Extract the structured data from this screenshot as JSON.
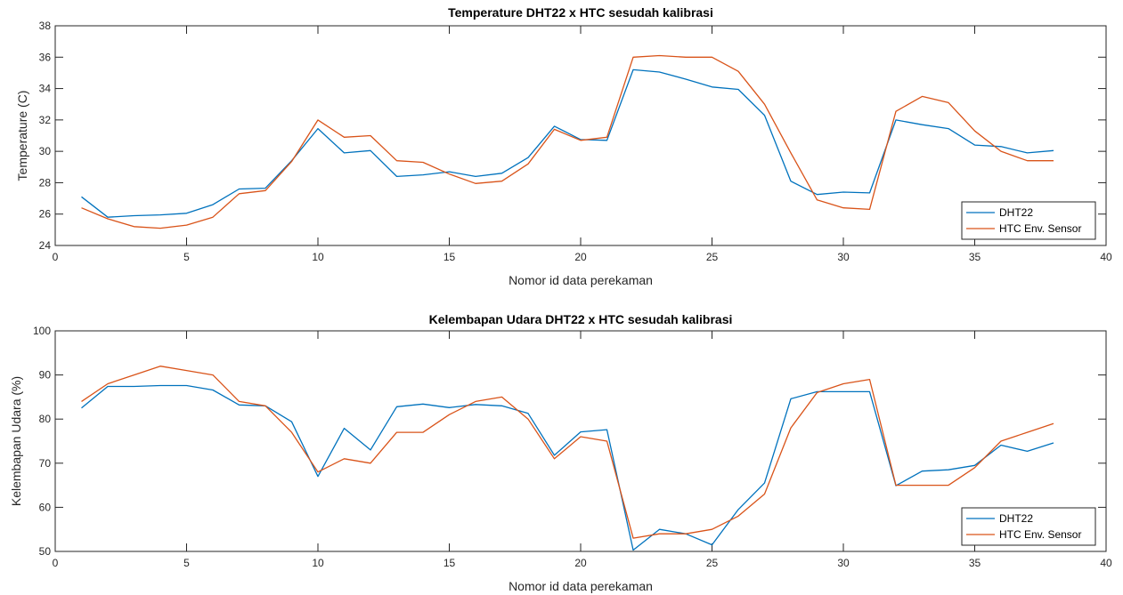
{
  "chart_data": [
    {
      "type": "line",
      "title": "Temperature DHT22 x HTC sesudah kalibrasi",
      "xlabel": "Nomor id data perekaman",
      "ylabel": "Temperature (C)",
      "xlim": [
        0,
        40
      ],
      "ylim": [
        24,
        38
      ],
      "xticks": [
        0,
        5,
        10,
        15,
        20,
        25,
        30,
        35,
        40
      ],
      "yticks": [
        24,
        26,
        28,
        30,
        32,
        34,
        36,
        38
      ],
      "grid": false,
      "legend_position": "bottom-right",
      "x": [
        1,
        2,
        3,
        4,
        5,
        6,
        7,
        8,
        9,
        10,
        11,
        12,
        13,
        14,
        15,
        16,
        17,
        18,
        19,
        20,
        21,
        22,
        23,
        24,
        25,
        26,
        27,
        28,
        29,
        30,
        31,
        32,
        33,
        34,
        35,
        36,
        37,
        38
      ],
      "series": [
        {
          "name": "DHT22",
          "color": "#0072BD",
          "values": [
            27.1,
            25.8,
            25.9,
            25.95,
            26.05,
            26.6,
            27.6,
            27.65,
            29.4,
            31.45,
            29.9,
            30.05,
            28.4,
            28.5,
            28.7,
            28.4,
            28.6,
            29.6,
            31.6,
            30.75,
            30.7,
            35.2,
            35.05,
            34.6,
            34.1,
            33.95,
            32.3,
            28.1,
            27.25,
            27.4,
            27.35,
            32.0,
            31.7,
            31.45,
            30.4,
            30.3,
            29.9,
            30.05
          ]
        },
        {
          "name": "HTC Env. Sensor",
          "color": "#D95319",
          "values": [
            26.4,
            25.7,
            25.2,
            25.1,
            25.3,
            25.8,
            27.3,
            27.5,
            29.35,
            32.0,
            30.9,
            31.0,
            29.4,
            29.3,
            28.55,
            27.95,
            28.1,
            29.2,
            31.4,
            30.7,
            30.9,
            36.0,
            36.1,
            36.0,
            36.0,
            35.1,
            33.0,
            29.9,
            26.9,
            26.4,
            26.3,
            32.55,
            33.5,
            33.1,
            31.3,
            30.0,
            29.4,
            29.4
          ]
        }
      ]
    },
    {
      "type": "line",
      "title": "Kelembapan Udara DHT22 x HTC sesudah kalibrasi",
      "xlabel": "Nomor id data perekaman",
      "ylabel": "Kelembapan Udara (%)",
      "xlim": [
        0,
        40
      ],
      "ylim": [
        50,
        100
      ],
      "xticks": [
        0,
        5,
        10,
        15,
        20,
        25,
        30,
        35,
        40
      ],
      "yticks": [
        50,
        60,
        70,
        80,
        90,
        100
      ],
      "grid": false,
      "legend_position": "bottom-right",
      "x": [
        1,
        2,
        3,
        4,
        5,
        6,
        7,
        8,
        9,
        10,
        11,
        12,
        13,
        14,
        15,
        16,
        17,
        18,
        19,
        20,
        21,
        22,
        23,
        24,
        25,
        26,
        27,
        28,
        29,
        30,
        31,
        32,
        33,
        34,
        35,
        36,
        37,
        38
      ],
      "series": [
        {
          "name": "DHT22",
          "color": "#0072BD",
          "values": [
            82.5,
            87.4,
            87.4,
            87.6,
            87.6,
            86.6,
            83.2,
            83.0,
            79.4,
            67.0,
            77.9,
            73.0,
            82.8,
            83.4,
            82.6,
            83.3,
            83.0,
            81.3,
            71.8,
            77.1,
            77.6,
            50.3,
            55.0,
            54.0,
            51.5,
            59.5,
            65.5,
            84.6,
            86.2,
            86.2,
            86.2,
            64.9,
            68.2,
            68.5,
            69.5,
            74.1,
            72.7,
            74.6
          ]
        },
        {
          "name": "HTC Env. Sensor",
          "color": "#D95319",
          "values": [
            84.0,
            88.0,
            90.0,
            92.0,
            91.0,
            90.0,
            84.0,
            83.0,
            77.0,
            68.0,
            71.0,
            70.0,
            77.0,
            77.0,
            81.0,
            84.0,
            85.0,
            80.0,
            71.0,
            76.0,
            75.0,
            53.0,
            54.0,
            54.0,
            55.0,
            58.0,
            63.0,
            78.0,
            86.0,
            88.0,
            89.0,
            65.0,
            65.0,
            65.0,
            69.0,
            75.0,
            77.0,
            79.0
          ]
        }
      ]
    }
  ]
}
